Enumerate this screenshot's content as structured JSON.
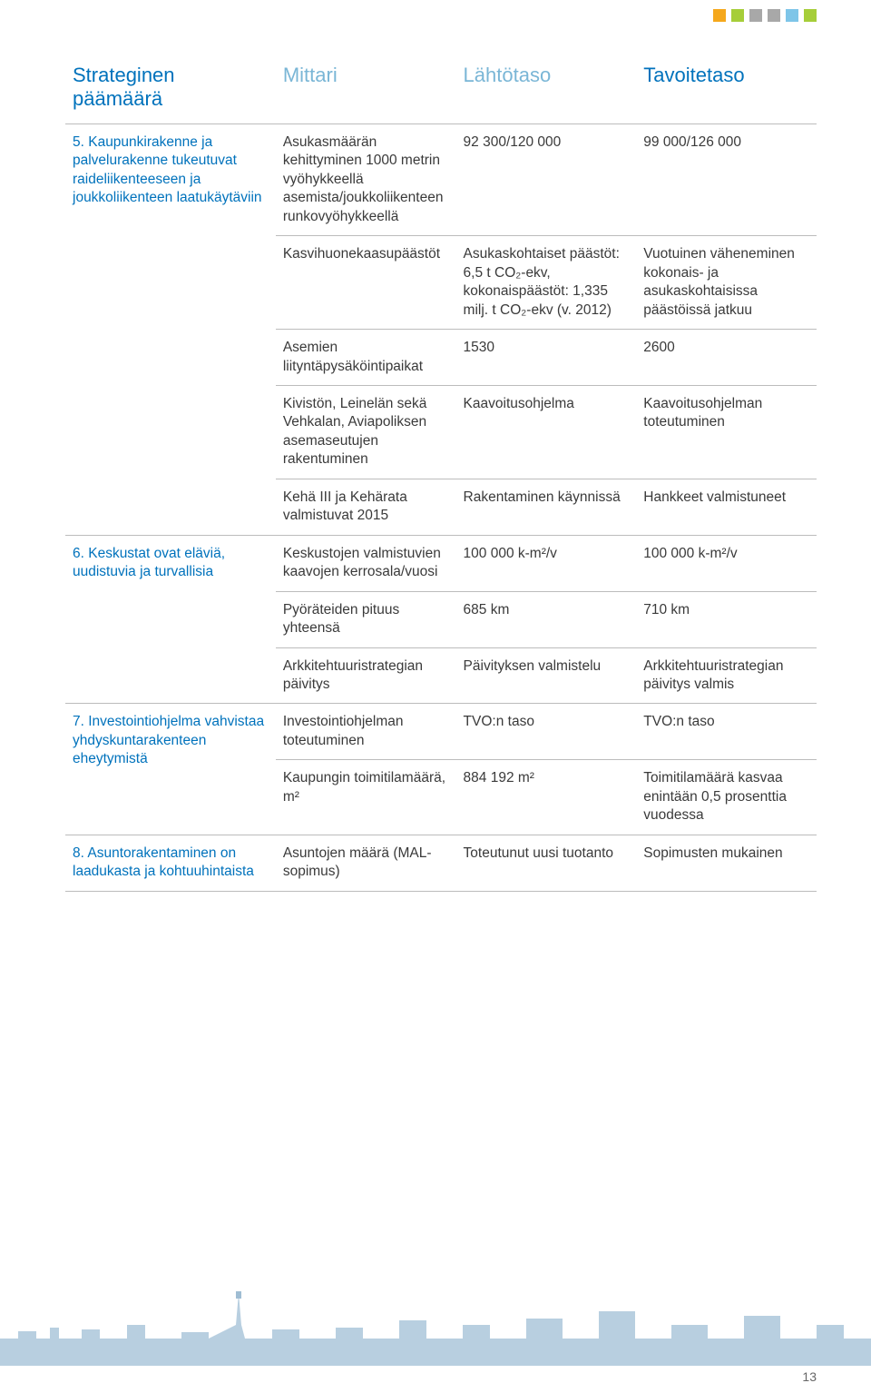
{
  "top_squares": [
    "#f5a81c",
    "#a6ce39",
    "#a8a8a8",
    "#a8a8a8",
    "#7ec5e8",
    "#a6ce39"
  ],
  "header": {
    "goal": "Strateginen päämäärä",
    "metric": "Mittari",
    "base": "Lähtötaso",
    "target": "Tavoitetaso"
  },
  "colors": {
    "heading_primary": "#0072bc",
    "heading_light": "#7ab6d6",
    "body_text": "#3a3a3a",
    "rule": "#bcbcbc",
    "silhouette": "#b8cfe0",
    "tower": "#9fbdd3",
    "background": "#ffffff"
  },
  "rows": [
    {
      "goal": "5.  Kaupunkirakenne ja palvelurakenne tukeutuvat raideliikenteeseen ja joukkoliikenteen laatukäytäviin",
      "sub": [
        {
          "metric": "Asukasmäärän kehittyminen 1000 metrin vyöhykkeellä asemista/joukkoliikenteen runkovyöhykkeellä",
          "base": "92 300/120 000",
          "target": "99 000/126 000"
        },
        {
          "metric": "Kasvihuonekaasupäästöt",
          "base": "Asukaskohtaiset päästöt: 6,5 t CO₂-ekv, kokonaispäästöt: 1,335 milj. t CO₂-ekv (v. 2012)",
          "target": "Vuotuinen väheneminen kokonais- ja asukaskohtaisissa päästöissä jatkuu"
        },
        {
          "metric": "Asemien liityntäpysäköintipaikat",
          "base": "1530",
          "target": "2600"
        },
        {
          "metric": "Kivistön, Leinelän sekä Vehkalan, Aviapoliksen asemaseutujen rakentuminen",
          "base": "Kaavoitusohjelma",
          "target": "Kaavoitusohjelman toteutuminen"
        },
        {
          "metric": "Kehä III ja Kehärata valmistuvat 2015",
          "base": "Rakentaminen käynnissä",
          "target": "Hankkeet valmistuneet"
        }
      ]
    },
    {
      "goal": "6.  Keskustat ovat eläviä, uudistuvia ja turvallisia",
      "sub": [
        {
          "metric": "Keskustojen valmistuvien kaavojen kerrosala/vuosi",
          "base": "100 000 k-m²/v",
          "target": "100 000 k-m²/v"
        },
        {
          "metric": "Pyöräteiden pituus yhteensä",
          "base": "685 km",
          "target": "710 km"
        },
        {
          "metric": "Arkkitehtuuristrategian päivitys",
          "base": "Päivityksen valmistelu",
          "target": "Arkkitehtuuristrategian päivitys valmis"
        }
      ]
    },
    {
      "goal": "7.  Investointiohjelma vahvistaa yhdyskuntarakenteen eheytymistä",
      "sub": [
        {
          "metric": "Investointiohjelman toteutuminen",
          "base": "TVO:n taso",
          "target": "TVO:n taso"
        },
        {
          "metric": "Kaupungin toimitilamäärä, m²",
          "base": "884 192 m²",
          "target": "Toimitilamäärä kasvaa enintään 0,5 prosenttia vuodessa"
        }
      ]
    },
    {
      "goal": "8.  Asuntorakentaminen on laadukasta ja kohtuuhintaista",
      "sub": [
        {
          "metric": "Asuntojen määrä (MAL-sopimus)",
          "base": "Toteutunut uusi tuotanto",
          "target": "Sopimusten mukainen"
        }
      ]
    }
  ],
  "page_number": "13"
}
